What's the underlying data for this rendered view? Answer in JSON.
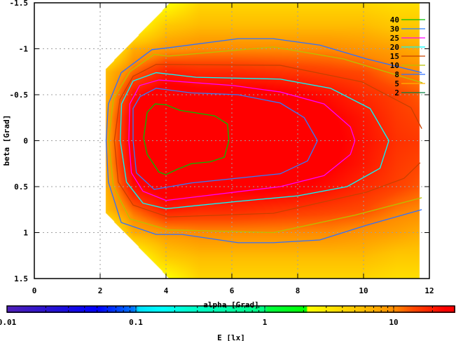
{
  "chart_data": {
    "type": "heatmap",
    "xlabel": "alpha [Grad]",
    "ylabel": "beta [Grad]",
    "xlim": [
      0,
      12
    ],
    "ylim": [
      -1.5,
      1.5
    ],
    "y_reversed": true,
    "xticks": [
      "0",
      "2",
      "4",
      "6",
      "8",
      "10",
      "12"
    ],
    "yticks": [
      "-1.5",
      "-1",
      "-0.5",
      "0",
      "0.5",
      "1",
      "1.5"
    ],
    "grid": true,
    "colorbar": {
      "label": "E [lx]",
      "scale": "log",
      "range": [
        0.01,
        30
      ],
      "ticks": [
        "0.01",
        "0.1",
        "1",
        "10"
      ]
    },
    "grid_alpha": [
      2.2,
      3,
      4,
      5,
      6,
      7,
      8,
      9,
      10,
      11,
      11.7
    ],
    "grid_beta_abs": [
      0,
      0.25,
      0.5,
      0.75,
      1.0,
      1.25,
      1.5
    ],
    "values_by_alpha": [
      [
        8,
        8,
        7,
        6,
        null,
        null,
        null
      ],
      [
        30,
        29,
        22,
        12,
        7,
        null,
        null
      ],
      [
        42,
        41,
        31,
        20,
        9,
        5,
        2
      ],
      [
        42,
        40,
        28,
        18,
        10,
        6,
        4
      ],
      [
        39,
        36,
        28,
        18,
        10,
        6,
        4
      ],
      [
        36,
        34,
        28,
        17,
        10,
        6,
        4
      ],
      [
        33,
        31,
        26,
        16,
        10,
        6,
        4
      ],
      [
        27,
        26,
        22,
        15,
        10,
        6,
        4
      ],
      [
        22,
        21,
        18,
        14,
        9,
        6,
        4
      ],
      [
        17,
        16,
        15,
        11,
        8,
        5,
        3.5
      ],
      [
        16,
        14.5,
        13,
        10,
        7,
        5,
        3.5
      ]
    ],
    "domain_polygon": [
      [
        2.15,
        -0.78
      ],
      [
        4.1,
        -1.5
      ],
      [
        11.7,
        -1.5
      ],
      [
        11.7,
        1.5
      ],
      [
        4.1,
        1.5
      ],
      [
        2.15,
        0.78
      ]
    ],
    "contours": [
      {
        "level": "40",
        "color": "#00c000",
        "points": [
          [
            3.43,
            -0.31
          ],
          [
            3.67,
            -0.4
          ],
          [
            4.0,
            -0.39
          ],
          [
            4.42,
            -0.33
          ],
          [
            5.48,
            -0.27
          ],
          [
            5.87,
            -0.18
          ],
          [
            5.91,
            0
          ],
          [
            5.77,
            0.18
          ],
          [
            5.34,
            0.23
          ],
          [
            4.77,
            0.25
          ],
          [
            4.35,
            0.31
          ],
          [
            3.99,
            0.37
          ],
          [
            3.78,
            0.34
          ],
          [
            3.43,
            0.15
          ],
          [
            3.32,
            -0.03
          ],
          [
            3.43,
            -0.31
          ]
        ]
      },
      {
        "level": "30",
        "color": "#2f7fff",
        "points": [
          [
            3.0,
            0
          ],
          [
            3.0,
            -0.35
          ],
          [
            3.21,
            -0.48
          ],
          [
            3.7,
            -0.57
          ],
          [
            4.77,
            -0.52
          ],
          [
            6.19,
            -0.5
          ],
          [
            7.47,
            -0.41
          ],
          [
            8.2,
            -0.25
          ],
          [
            8.6,
            0
          ],
          [
            8.3,
            0.22
          ],
          [
            7.47,
            0.36
          ],
          [
            4.77,
            0.46
          ],
          [
            3.64,
            0.53
          ],
          [
            3.1,
            0.35
          ],
          [
            3.0,
            0
          ]
        ]
      },
      {
        "level": "25",
        "color": "#ff00ff",
        "points": [
          [
            2.87,
            0
          ],
          [
            2.9,
            -0.4
          ],
          [
            3.2,
            -0.6
          ],
          [
            3.78,
            -0.66
          ],
          [
            6.04,
            -0.6
          ],
          [
            7.47,
            -0.53
          ],
          [
            8.8,
            -0.4
          ],
          [
            9.6,
            -0.15
          ],
          [
            9.74,
            0
          ],
          [
            9.6,
            0.15
          ],
          [
            8.8,
            0.38
          ],
          [
            7.47,
            0.5
          ],
          [
            4.0,
            0.65
          ],
          [
            3.3,
            0.55
          ],
          [
            2.95,
            0.35
          ],
          [
            2.87,
            0
          ]
        ]
      },
      {
        "level": "20",
        "color": "#00ffff",
        "points": [
          [
            2.61,
            0
          ],
          [
            2.65,
            -0.4
          ],
          [
            3.0,
            -0.65
          ],
          [
            3.7,
            -0.74
          ],
          [
            4.91,
            -0.69
          ],
          [
            7.47,
            -0.67
          ],
          [
            9.0,
            -0.57
          ],
          [
            10.2,
            -0.35
          ],
          [
            10.77,
            0
          ],
          [
            10.5,
            0.3
          ],
          [
            9.5,
            0.5
          ],
          [
            8.0,
            0.6
          ],
          [
            6.19,
            0.66
          ],
          [
            4.0,
            0.74
          ],
          [
            3.3,
            0.68
          ],
          [
            2.8,
            0.45
          ],
          [
            2.61,
            0
          ]
        ]
      },
      {
        "level": "15",
        "color": "#c84000",
        "points": [
          [
            11.77,
            -0.13
          ],
          [
            11.44,
            -0.36
          ],
          [
            9.95,
            -0.64
          ],
          [
            7.47,
            -0.82
          ],
          [
            3.7,
            -0.83
          ],
          [
            3.0,
            -0.7
          ],
          [
            2.6,
            -0.45
          ],
          [
            2.43,
            0
          ],
          [
            2.55,
            0.45
          ],
          [
            3.0,
            0.7
          ],
          [
            4.06,
            0.83
          ],
          [
            7.26,
            0.79
          ],
          [
            10.09,
            0.56
          ],
          [
            11.23,
            0.41
          ],
          [
            11.72,
            0.24
          ]
        ]
      },
      {
        "level": "10",
        "color": "#b8c000",
        "points": [
          [
            11.79,
            -0.63
          ],
          [
            9.38,
            -0.89
          ],
          [
            7.26,
            -1.02
          ],
          [
            4.06,
            -0.92
          ],
          [
            3.64,
            -0.94
          ],
          [
            2.9,
            -0.75
          ],
          [
            2.4,
            -0.45
          ],
          [
            2.26,
            0
          ],
          [
            2.4,
            0.5
          ],
          [
            2.9,
            0.85
          ],
          [
            4.06,
            0.97
          ],
          [
            7.26,
            1.0
          ],
          [
            9.74,
            0.81
          ],
          [
            11.77,
            0.62
          ]
        ]
      },
      {
        "level": "8",
        "color": "#3070ff",
        "points": [
          [
            11.77,
            -0.74
          ],
          [
            10.09,
            -0.89
          ],
          [
            8.67,
            -1.04
          ],
          [
            7.26,
            -1.11
          ],
          [
            6.19,
            -1.11
          ],
          [
            4.06,
            -1.01
          ],
          [
            3.57,
            -0.99
          ],
          [
            2.64,
            -0.74
          ],
          [
            2.25,
            -0.4
          ],
          [
            2.18,
            0
          ],
          [
            2.25,
            0.45
          ],
          [
            2.64,
            0.89
          ],
          [
            3.7,
            1.02
          ],
          [
            4.49,
            1.02
          ],
          [
            6.19,
            1.11
          ],
          [
            7.26,
            1.11
          ],
          [
            8.67,
            1.08
          ],
          [
            10.09,
            0.92
          ],
          [
            11.77,
            0.75
          ]
        ]
      },
      {
        "level": "5",
        "color": "#ffb000",
        "points": []
      },
      {
        "level": "2",
        "color": "#008040",
        "points": []
      }
    ]
  }
}
